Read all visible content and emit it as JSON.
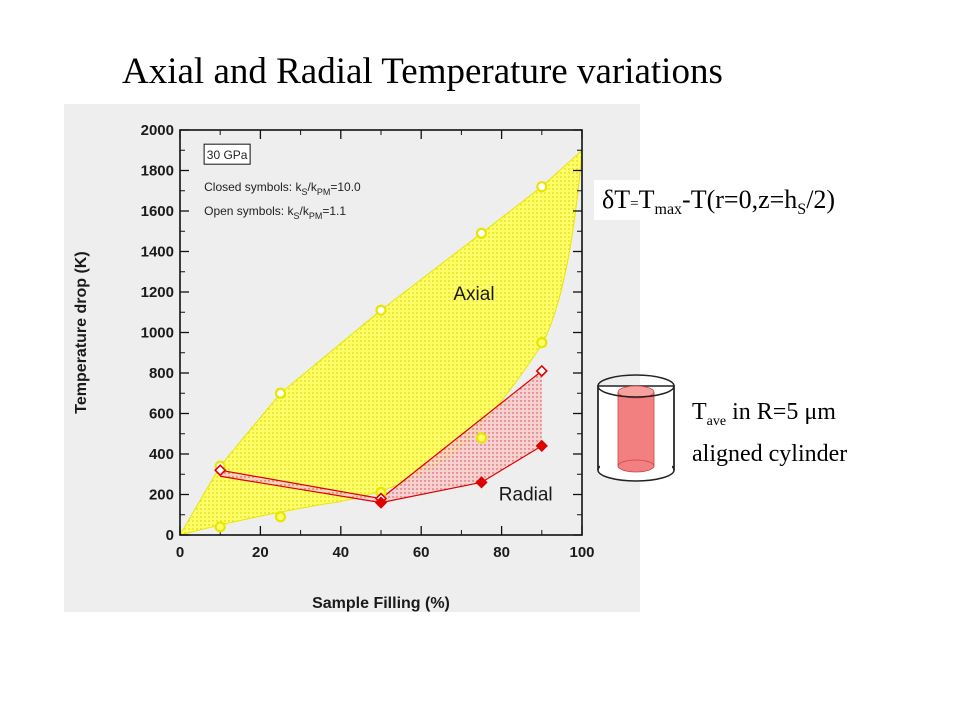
{
  "slide": {
    "title": "Axial and Radial Temperature variations"
  },
  "formula": {
    "delta": "δT",
    "eq": "=",
    "t": "T",
    "max_sub": "max",
    "rest": "-T(r=0,z=h",
    "s_sub": "S",
    "tail": "/2)"
  },
  "tave_label": {
    "t": "T",
    "ave_sub": "ave",
    "line1_rest": " in R=5 μm",
    "line2": "aligned cylinder"
  },
  "colors": {
    "axial_fill": "#ffff66",
    "axial_edge": "#e6e600",
    "radial_fill": "#e04040",
    "radial_edge": "#e00000",
    "cylinder_core": "#f28080",
    "chart_bg": "#eeeeee"
  },
  "chart_data": {
    "type": "scatter",
    "xlabel": "Sample Filling (%)",
    "ylabel": "Temperature drop (K)",
    "xlim": [
      0,
      100
    ],
    "ylim": [
      0,
      2000
    ],
    "xticks": [
      "0",
      "20",
      "40",
      "60",
      "80",
      "100"
    ],
    "yticks": [
      "0",
      "200",
      "400",
      "600",
      "800",
      "1000",
      "1200",
      "1400",
      "1600",
      "1800",
      "2000"
    ],
    "grid": false,
    "legend_box": "30 GPa",
    "notes": [
      {
        "lead": "Closed symbols:  k",
        "sub1": "S",
        "mid": "/k",
        "sub2": "PM",
        "val": "=10.0"
      },
      {
        "lead": "Open symbols:   k",
        "sub1": "S",
        "mid": "/k",
        "sub2": "PM",
        "val": "=1.1"
      }
    ],
    "region_labels": {
      "axial": "Axial",
      "radial": "Radial"
    },
    "series": [
      {
        "name": "Axial",
        "symbol": "circle",
        "filled": false,
        "x": [
          10,
          25,
          50,
          75,
          90
        ],
        "y": [
          340,
          700,
          1110,
          1490,
          1720
        ]
      },
      {
        "name": "Axial",
        "symbol": "circle",
        "filled": true,
        "x": [
          10,
          25,
          50,
          75,
          90
        ],
        "y": [
          40,
          90,
          210,
          480,
          950
        ]
      },
      {
        "name": "Radial",
        "symbol": "diamond",
        "filled": false,
        "x": [
          10,
          50,
          90
        ],
        "y": [
          320,
          180,
          810
        ]
      },
      {
        "name": "Radial",
        "symbol": "diamond",
        "filled": true,
        "x": [
          50,
          75,
          90
        ],
        "y": [
          160,
          260,
          440
        ]
      }
    ]
  }
}
